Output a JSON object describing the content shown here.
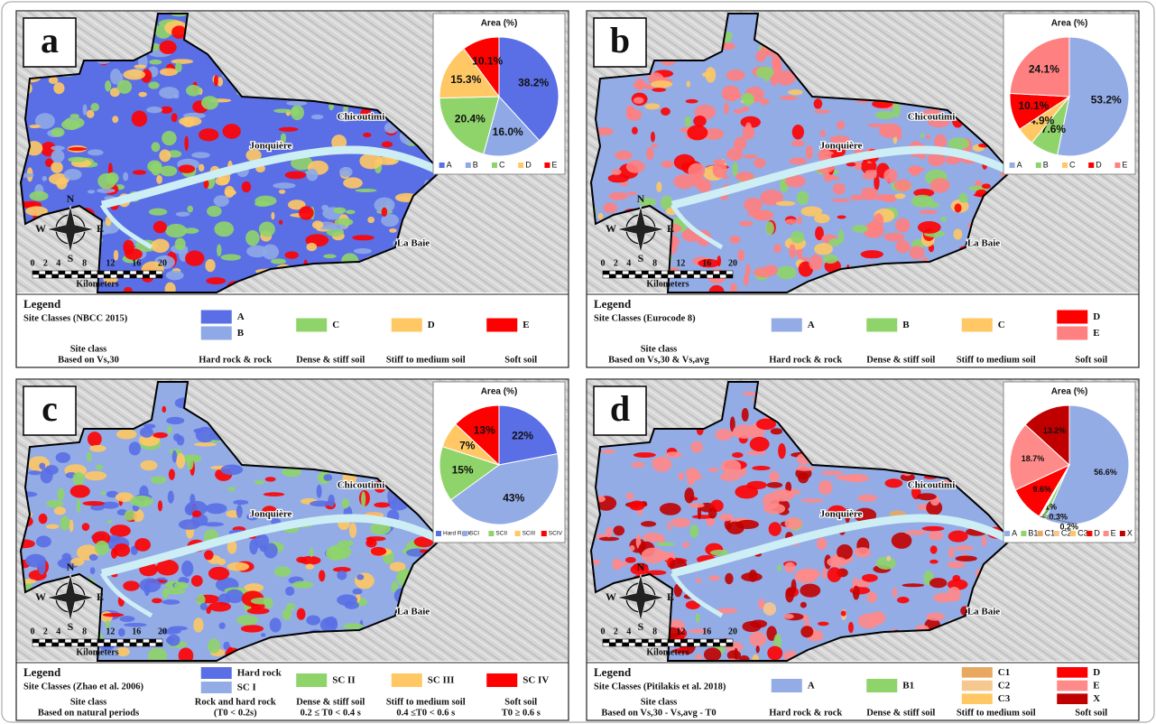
{
  "places": [
    "Jonquière",
    "Chicoutimi",
    "La Baie"
  ],
  "compass": [
    "N",
    "E",
    "S",
    "W"
  ],
  "scale_bar": {
    "ticks": [
      0,
      2,
      4,
      8,
      12,
      16,
      20
    ],
    "unit": "Kilometers"
  },
  "panels": [
    {
      "label": "a",
      "pie": {
        "type": "pie",
        "title": "Area (%)",
        "categories": [
          "A",
          "B",
          "C",
          "D",
          "E"
        ],
        "colors": [
          "#5a6fe6",
          "#8ea9e6",
          "#8fd46a",
          "#ffc864",
          "#ff0000"
        ],
        "values": [
          38.2,
          16.0,
          20.4,
          15.3,
          10.1
        ],
        "value_labels": [
          "38.2%",
          "16.0%",
          "20.4%",
          "15.3%",
          "10.1%"
        ]
      },
      "legend": {
        "title": "Legend",
        "heading": "Site Classes (NBCC 2015)",
        "basis": [
          "Site class",
          "Based on Vs,30"
        ],
        "groups": [
          {
            "items": [
              {
                "label": "A",
                "color": "#5a6fe6"
              },
              {
                "label": "B",
                "color": "#8ea9e6"
              }
            ],
            "description": [
              "Hard rock & rock"
            ]
          },
          {
            "items": [
              {
                "label": "C",
                "color": "#8fd46a"
              }
            ],
            "description": [
              "Dense & stiff soil"
            ]
          },
          {
            "items": [
              {
                "label": "D",
                "color": "#ffc864"
              }
            ],
            "description": [
              "Stiff to medium soil"
            ]
          },
          {
            "items": [
              {
                "label": "E",
                "color": "#ff0000"
              }
            ],
            "description": [
              "Soft soil"
            ]
          }
        ]
      }
    },
    {
      "label": "b",
      "pie": {
        "type": "pie",
        "title": "Area (%)",
        "categories": [
          "A",
          "B",
          "C",
          "D",
          "E"
        ],
        "colors": [
          "#93ace6",
          "#8fd46a",
          "#ffc864",
          "#ff0000",
          "#ff8080"
        ],
        "values": [
          53.2,
          7.6,
          4.9,
          10.1,
          24.1
        ],
        "value_labels": [
          "53.2%",
          "7.6%",
          "4.9%",
          "10.1%",
          "24.1%"
        ]
      },
      "legend": {
        "title": "Legend",
        "heading": "Site Classes (Eurocode 8)",
        "basis": [
          "Site class",
          "Based on Vs,30 & Vs,avg"
        ],
        "groups": [
          {
            "items": [
              {
                "label": "A",
                "color": "#93ace6"
              }
            ],
            "description": [
              "Hard rock & rock"
            ]
          },
          {
            "items": [
              {
                "label": "B",
                "color": "#8fd46a"
              }
            ],
            "description": [
              "Dense & stiff soil"
            ]
          },
          {
            "items": [
              {
                "label": "C",
                "color": "#ffc864"
              }
            ],
            "description": [
              "Stiff to medium soil"
            ]
          },
          {
            "items": [
              {
                "label": "D",
                "color": "#ff0000"
              },
              {
                "label": "E",
                "color": "#ff8080"
              }
            ],
            "description": [
              "Soft soil"
            ]
          }
        ]
      }
    },
    {
      "label": "c",
      "pie": {
        "type": "pie",
        "title": "Area (%)",
        "categories": [
          "Hard Rock",
          "SCI",
          "SCII",
          "SCIII",
          "SCIV"
        ],
        "colors": [
          "#5a6fe6",
          "#93ace6",
          "#8fd46a",
          "#ffc864",
          "#ff0000"
        ],
        "values": [
          22,
          43,
          15,
          7,
          13
        ],
        "value_labels": [
          "22%",
          "43%",
          "15%",
          "7%",
          "13%"
        ]
      },
      "legend": {
        "title": "Legend",
        "heading": "Site Classes (Zhao et al. 2006)",
        "basis": [
          "Site class",
          "Based on natural periods"
        ],
        "groups": [
          {
            "items": [
              {
                "label": "Hard rock",
                "color": "#5a6fe6"
              },
              {
                "label": "SC I",
                "color": "#93ace6"
              }
            ],
            "description": [
              "Rock and hard rock",
              "(T0 < 0.2s)"
            ]
          },
          {
            "items": [
              {
                "label": "SC II",
                "color": "#8fd46a"
              }
            ],
            "description": [
              "Dense & stiff soil",
              "0.2 ≤ T0 < 0.4 s"
            ]
          },
          {
            "items": [
              {
                "label": "SC III",
                "color": "#ffc864"
              }
            ],
            "description": [
              "Stiff to medium soil",
              "0.4 ≤T0 < 0.6 s"
            ]
          },
          {
            "items": [
              {
                "label": "SC IV",
                "color": "#ff0000"
              }
            ],
            "description": [
              "Soft soil",
              "T0 ≥ 0.6 s"
            ]
          }
        ]
      }
    },
    {
      "label": "d",
      "pie": {
        "type": "pie",
        "title": "Area (%)",
        "categories": [
          "A",
          "B1",
          "C1",
          "C2",
          "C3",
          "D",
          "E",
          "X"
        ],
        "colors": [
          "#93ace6",
          "#8fd46a",
          "#e8a860",
          "#f5c890",
          "#ffc864",
          "#ff0000",
          "#ff8a8a",
          "#c00000"
        ],
        "values": [
          56.6,
          1.2,
          0.1,
          0.3,
          0.2,
          9.6,
          18.7,
          13.2
        ],
        "value_labels": [
          "56.6%",
          "1.2%",
          "0.1%",
          "0.3%",
          "0.2%",
          "9.6%",
          "18.7%",
          "13.2%"
        ]
      },
      "legend": {
        "title": "Legend",
        "heading": "Site Classes (Pitilakis et al. 2018)",
        "basis": [
          "Site class",
          "Based on Vs,30 - Vs,avg - T0"
        ],
        "groups": [
          {
            "items": [
              {
                "label": "A",
                "color": "#93ace6"
              }
            ],
            "description": [
              "Hard rock & rock"
            ]
          },
          {
            "items": [
              {
                "label": "B1",
                "color": "#8fd46a"
              }
            ],
            "description": [
              "Dense & stiff soil"
            ]
          },
          {
            "items": [
              {
                "label": "C1",
                "color": "#e8a860"
              },
              {
                "label": "C2",
                "color": "#f5c890"
              },
              {
                "label": "C3",
                "color": "#ffc864"
              }
            ],
            "description": [
              "Stiff to medium soil"
            ]
          },
          {
            "items": [
              {
                "label": "D",
                "color": "#ff0000"
              },
              {
                "label": "E",
                "color": "#ff8a8a"
              },
              {
                "label": "X",
                "color": "#c00000"
              }
            ],
            "description": [
              "Soft soil"
            ]
          }
        ]
      }
    }
  ]
}
